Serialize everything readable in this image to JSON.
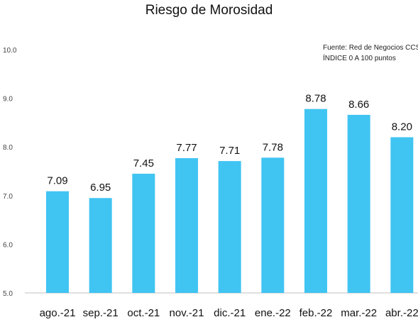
{
  "chart_data": {
    "type": "bar",
    "title": "Riesgo de Morosidad",
    "source_lines": [
      "Fuente: Red de Negocios CCS",
      "ÍNDICE 0 A 100  puntos"
    ],
    "categories": [
      "ago.-21",
      "sep.-21",
      "oct.-21",
      "nov.-21",
      "dic.-21",
      "ene.-22",
      "feb.-22",
      "mar.-22",
      "abr.-22"
    ],
    "values": [
      7.09,
      6.95,
      7.45,
      7.77,
      7.71,
      7.78,
      8.78,
      8.66,
      8.2
    ],
    "data_labels": [
      "7.09",
      "6.95",
      "7.45",
      "7.77",
      "7.71",
      "7.78",
      "8.78",
      "8.66",
      "8.20"
    ],
    "y_ticks": [
      "5.0",
      "6.0",
      "7.0",
      "8.0",
      "9.0",
      "10.0"
    ],
    "ylim": [
      5,
      10
    ],
    "bar_color": "#40C4F2",
    "grid": false,
    "legend": "none"
  }
}
